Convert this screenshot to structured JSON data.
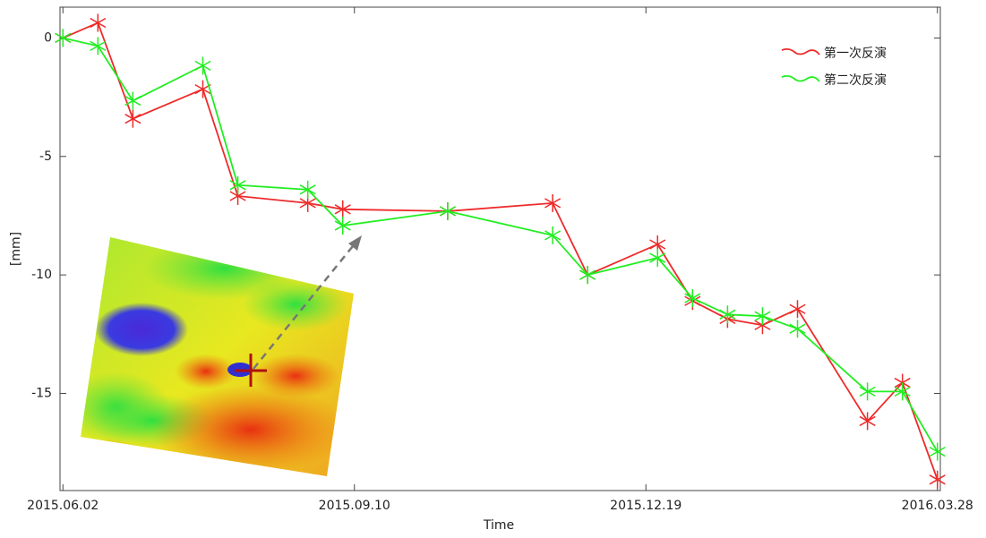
{
  "chart_data": {
    "type": "line",
    "x_label": "Time",
    "y_label": "[mm]",
    "x": [
      "2015-06-02",
      "2015-06-14",
      "2015-06-26",
      "2015-07-20",
      "2015-08-01",
      "2015-08-25",
      "2015-09-06",
      "2015-10-12",
      "2015-11-17",
      "2015-11-29",
      "2015-12-23",
      "2016-01-04",
      "2016-01-16",
      "2016-01-28",
      "2016-02-09",
      "2016-03-04",
      "2016-03-16",
      "2016-03-28"
    ],
    "series": [
      {
        "name": "第一次反演",
        "color": "#ee2a2a",
        "values": [
          0,
          0.64,
          -3.41,
          -2.16,
          -6.67,
          -6.97,
          -7.23,
          -7.31,
          -6.97,
          -10,
          -8.71,
          -11.1,
          -11.86,
          -12.12,
          -11.44,
          -16.17,
          -14.55,
          -18.64
        ]
      },
      {
        "name": "第二次反演",
        "color": "#22ee22",
        "values": [
          0,
          -0.34,
          -2.65,
          -1.17,
          -6.21,
          -6.4,
          -7.92,
          -7.31,
          -8.33,
          -10,
          -9.28,
          -10.98,
          -11.67,
          -11.74,
          -12.27,
          -14.92,
          -14.92,
          -17.46
        ]
      }
    ],
    "xlim": [
      "2015-06-01",
      "2016-03-29"
    ],
    "xticks": [
      {
        "value": "2015-06-02",
        "label": "2015.06.02"
      },
      {
        "value": "2015-09-10",
        "label": "2015.09.10"
      },
      {
        "value": "2015-12-19",
        "label": "2015.12.19"
      },
      {
        "value": "2016-03-28",
        "label": "2016.03.28"
      }
    ],
    "ylim": [
      -19.1,
      1.3
    ],
    "yticks": [
      0,
      -5,
      -10,
      -15
    ],
    "legend": "upper right"
  }
}
